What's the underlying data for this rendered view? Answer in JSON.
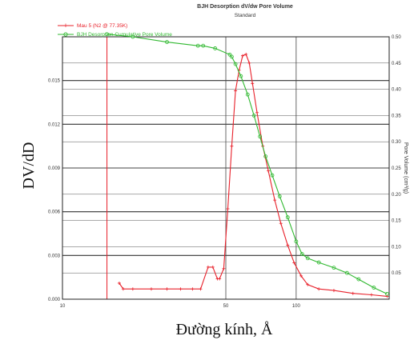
{
  "chart_data": {
    "type": "line",
    "title": "BJH Desorption dV/dw Pore Volume",
    "subtitle": "Standard",
    "xlabel": "Đường kính, Å",
    "ylabel_left": "DV/dD",
    "ylabel_right": "Pore Volume (cm³/g)",
    "x_scale": "log",
    "x_ticks": [
      {
        "value": 10,
        "label": "10"
      },
      {
        "value": 50,
        "label": "50"
      },
      {
        "value": 100,
        "label": "100"
      }
    ],
    "y_left_ticks": [
      {
        "value": 0.0,
        "label": "0.000"
      },
      {
        "value": 0.003,
        "label": "0.003"
      },
      {
        "value": 0.006,
        "label": "0.006"
      },
      {
        "value": 0.009,
        "label": "0.009"
      },
      {
        "value": 0.012,
        "label": "0.012"
      },
      {
        "value": 0.015,
        "label": "0.015"
      }
    ],
    "y_right_ticks": [
      {
        "value": 0.05,
        "label": "0.05"
      },
      {
        "value": 0.1,
        "label": "0.10"
      },
      {
        "value": 0.15,
        "label": "0.15"
      },
      {
        "value": 0.2,
        "label": "0.20"
      },
      {
        "value": 0.25,
        "label": "0.25"
      },
      {
        "value": 0.3,
        "label": "0.30"
      },
      {
        "value": 0.35,
        "label": "0.35"
      },
      {
        "value": 0.4,
        "label": "0.40"
      },
      {
        "value": 0.45,
        "label": "0.45"
      },
      {
        "value": 0.5,
        "label": "0.50"
      }
    ],
    "y_left_range": [
      0.0,
      0.018
    ],
    "y_right_range": [
      0.0,
      0.5
    ],
    "x_range": [
      10,
      250
    ],
    "left_vline_x": 15.5,
    "grid": true,
    "legend_position": "top-left",
    "series": [
      {
        "name": "Mau 5 (N2 @ 77.35K)",
        "axis": "left",
        "color": "#e8202a",
        "marker": "+",
        "points": [
          [
            17.5,
            0.0011
          ],
          [
            18.2,
            0.0007
          ],
          [
            20,
            0.0007
          ],
          [
            24,
            0.0007
          ],
          [
            28,
            0.0007
          ],
          [
            32,
            0.0007
          ],
          [
            36,
            0.0007
          ],
          [
            39,
            0.0007
          ],
          [
            42,
            0.0022
          ],
          [
            44,
            0.0022
          ],
          [
            46,
            0.0014
          ],
          [
            47,
            0.0014
          ],
          [
            49,
            0.0021
          ],
          [
            51,
            0.0062
          ],
          [
            53,
            0.0105
          ],
          [
            55,
            0.0143
          ],
          [
            57,
            0.0157
          ],
          [
            59,
            0.0167
          ],
          [
            61,
            0.0168
          ],
          [
            63,
            0.0162
          ],
          [
            65,
            0.0148
          ],
          [
            68,
            0.0128
          ],
          [
            72,
            0.0105
          ],
          [
            76,
            0.0088
          ],
          [
            81,
            0.0068
          ],
          [
            86,
            0.0052
          ],
          [
            92,
            0.0037
          ],
          [
            98,
            0.0025
          ],
          [
            105,
            0.0016
          ],
          [
            112,
            0.001
          ],
          [
            125,
            0.0007
          ],
          [
            145,
            0.0006
          ],
          [
            175,
            0.0004
          ],
          [
            210,
            0.0003
          ],
          [
            245,
            0.0002
          ]
        ]
      },
      {
        "name": "BJH Desorption Cumulative Pore Volume",
        "axis": "right",
        "color": "#2fb82f",
        "marker": "o",
        "points": [
          [
            15.5,
            0.505
          ],
          [
            20,
            0.5
          ],
          [
            28,
            0.49
          ],
          [
            38,
            0.483
          ],
          [
            40,
            0.483
          ],
          [
            45,
            0.478
          ],
          [
            52,
            0.466
          ],
          [
            53,
            0.462
          ],
          [
            55,
            0.448
          ],
          [
            58,
            0.425
          ],
          [
            62,
            0.39
          ],
          [
            66,
            0.35
          ],
          [
            70,
            0.31
          ],
          [
            74,
            0.272
          ],
          [
            79,
            0.236
          ],
          [
            85,
            0.196
          ],
          [
            92,
            0.156
          ],
          [
            100,
            0.11
          ],
          [
            106,
            0.086
          ],
          [
            112,
            0.078
          ],
          [
            125,
            0.07
          ],
          [
            145,
            0.06
          ],
          [
            165,
            0.05
          ],
          [
            185,
            0.038
          ],
          [
            215,
            0.022
          ],
          [
            245,
            0.01
          ]
        ]
      }
    ]
  }
}
